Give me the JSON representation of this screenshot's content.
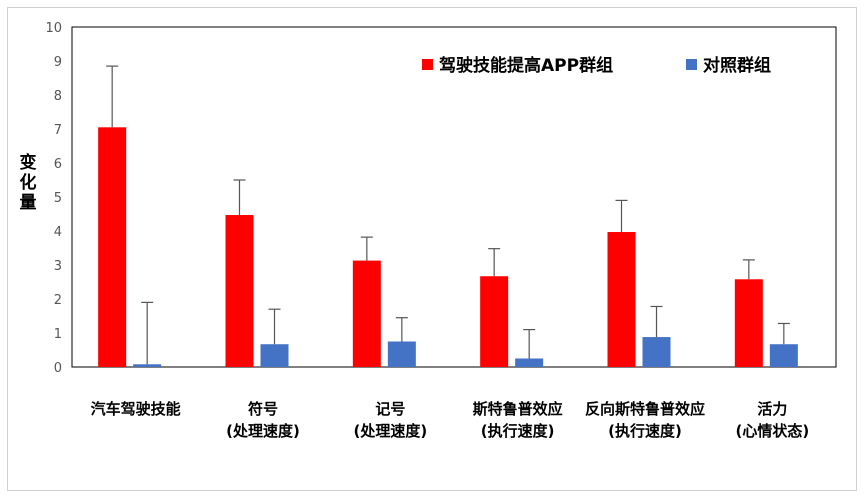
{
  "chart_data": {
    "type": "bar",
    "title": "",
    "xlabel": "",
    "ylabel": "变化量",
    "ylim": [
      0,
      10
    ],
    "yticks": [
      "0",
      "1",
      "2",
      "3",
      "4",
      "5",
      "6",
      "7",
      "8",
      "9",
      "10"
    ],
    "categories": [
      [
        "汽车驾驶技能"
      ],
      [
        "符号",
        "(处理速度)"
      ],
      [
        "记号",
        "(处理速度)"
      ],
      [
        "斯特鲁普效应",
        "(执行速度)"
      ],
      [
        "反向斯特鲁普效应",
        "(执行速度)"
      ],
      [
        "活力",
        "(心情状态)"
      ]
    ],
    "series": [
      {
        "name": "驾驶技能提高APP群组",
        "color": "#ff0000",
        "values": [
          7.05,
          4.47,
          3.13,
          2.67,
          3.97,
          2.58
        ],
        "errors": [
          8.85,
          5.5,
          3.82,
          3.48,
          4.9,
          3.15
        ]
      },
      {
        "name": "对照群组",
        "color": "#4472c4",
        "values": [
          0.08,
          0.67,
          0.75,
          0.25,
          0.88,
          0.67
        ],
        "errors": [
          1.9,
          1.7,
          1.45,
          1.1,
          1.78,
          1.28
        ]
      }
    ],
    "grid": false,
    "legend_position": "top-right"
  }
}
